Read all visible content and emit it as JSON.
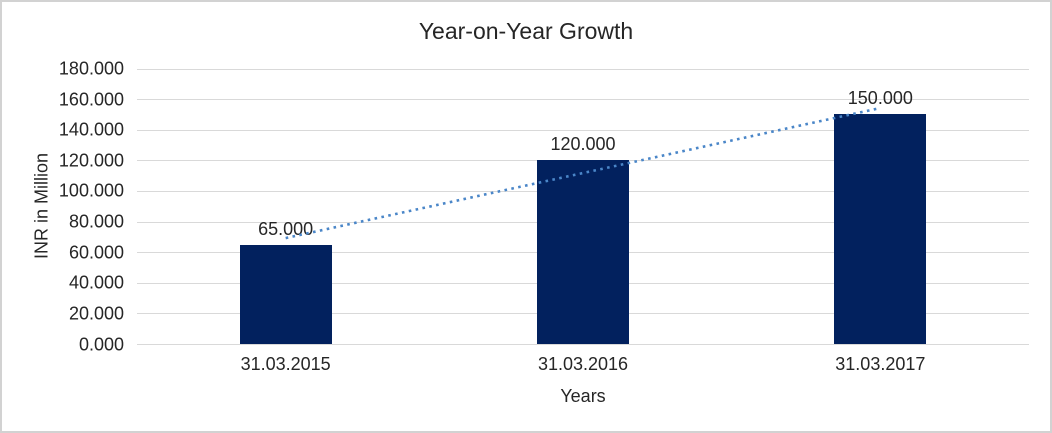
{
  "chart_data": {
    "type": "bar",
    "title": "Year-on-Year Growth",
    "xlabel": "Years",
    "ylabel": "INR in Million",
    "categories": [
      "31.03.2015",
      "31.03.2016",
      "31.03.2017"
    ],
    "values": [
      65,
      120,
      150
    ],
    "value_labels": [
      "65.000",
      "120.000",
      "150.000"
    ],
    "ylim": [
      0,
      180
    ],
    "ytick_step": 20,
    "ytick_labels": [
      "0.000",
      "20.000",
      "40.000",
      "60.000",
      "80.000",
      "100.000",
      "120.000",
      "140.000",
      "160.000",
      "180.000"
    ],
    "grid": true,
    "legend": "none",
    "bar_color": "#02215e",
    "trendline": {
      "type": "linear",
      "style": "dotted",
      "color": "#4a86c8",
      "fit_value_at_first_category": 69.2,
      "fit_value_at_last_category": 154.2
    }
  },
  "colors": {
    "background": "#ffffff",
    "border": "#d2d2d2",
    "gridline": "#d9d9d9",
    "text": "#262626"
  }
}
